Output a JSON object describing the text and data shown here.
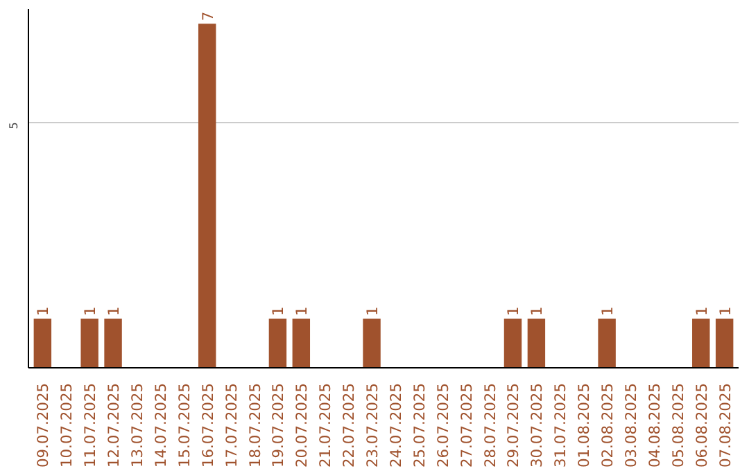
{
  "chart_data": {
    "type": "bar",
    "categories": [
      "09.07.2025",
      "10.07.2025",
      "11.07.2025",
      "12.07.2025",
      "13.07.2025",
      "14.07.2025",
      "15.07.2025",
      "16.07.2025",
      "17.07.2025",
      "18.07.2025",
      "19.07.2025",
      "20.07.2025",
      "21.07.2025",
      "22.07.2025",
      "23.07.2025",
      "24.07.2025",
      "25.07.2025",
      "26.07.2025",
      "27.07.2025",
      "28.07.2025",
      "29.07.2025",
      "30.07.2025",
      "31.07.2025",
      "01.08.2025",
      "02.08.2025",
      "03.08.2025",
      "04.08.2025",
      "05.08.2025",
      "06.08.2025",
      "07.08.2025"
    ],
    "values": [
      1,
      0,
      1,
      1,
      0,
      0,
      0,
      7,
      0,
      0,
      1,
      1,
      0,
      0,
      1,
      0,
      0,
      0,
      0,
      0,
      1,
      1,
      0,
      0,
      1,
      0,
      0,
      0,
      1,
      1
    ],
    "value_labels": [
      "1",
      null,
      "1",
      "1",
      null,
      null,
      null,
      "7",
      null,
      null,
      "1",
      "1",
      null,
      null,
      "1",
      null,
      null,
      null,
      null,
      null,
      "1",
      "1",
      null,
      null,
      "1",
      null,
      null,
      null,
      "1",
      "1"
    ],
    "color": "#a0522d",
    "ylim": [
      0,
      7.3
    ],
    "yticks": [
      5
    ],
    "grid": "y"
  }
}
